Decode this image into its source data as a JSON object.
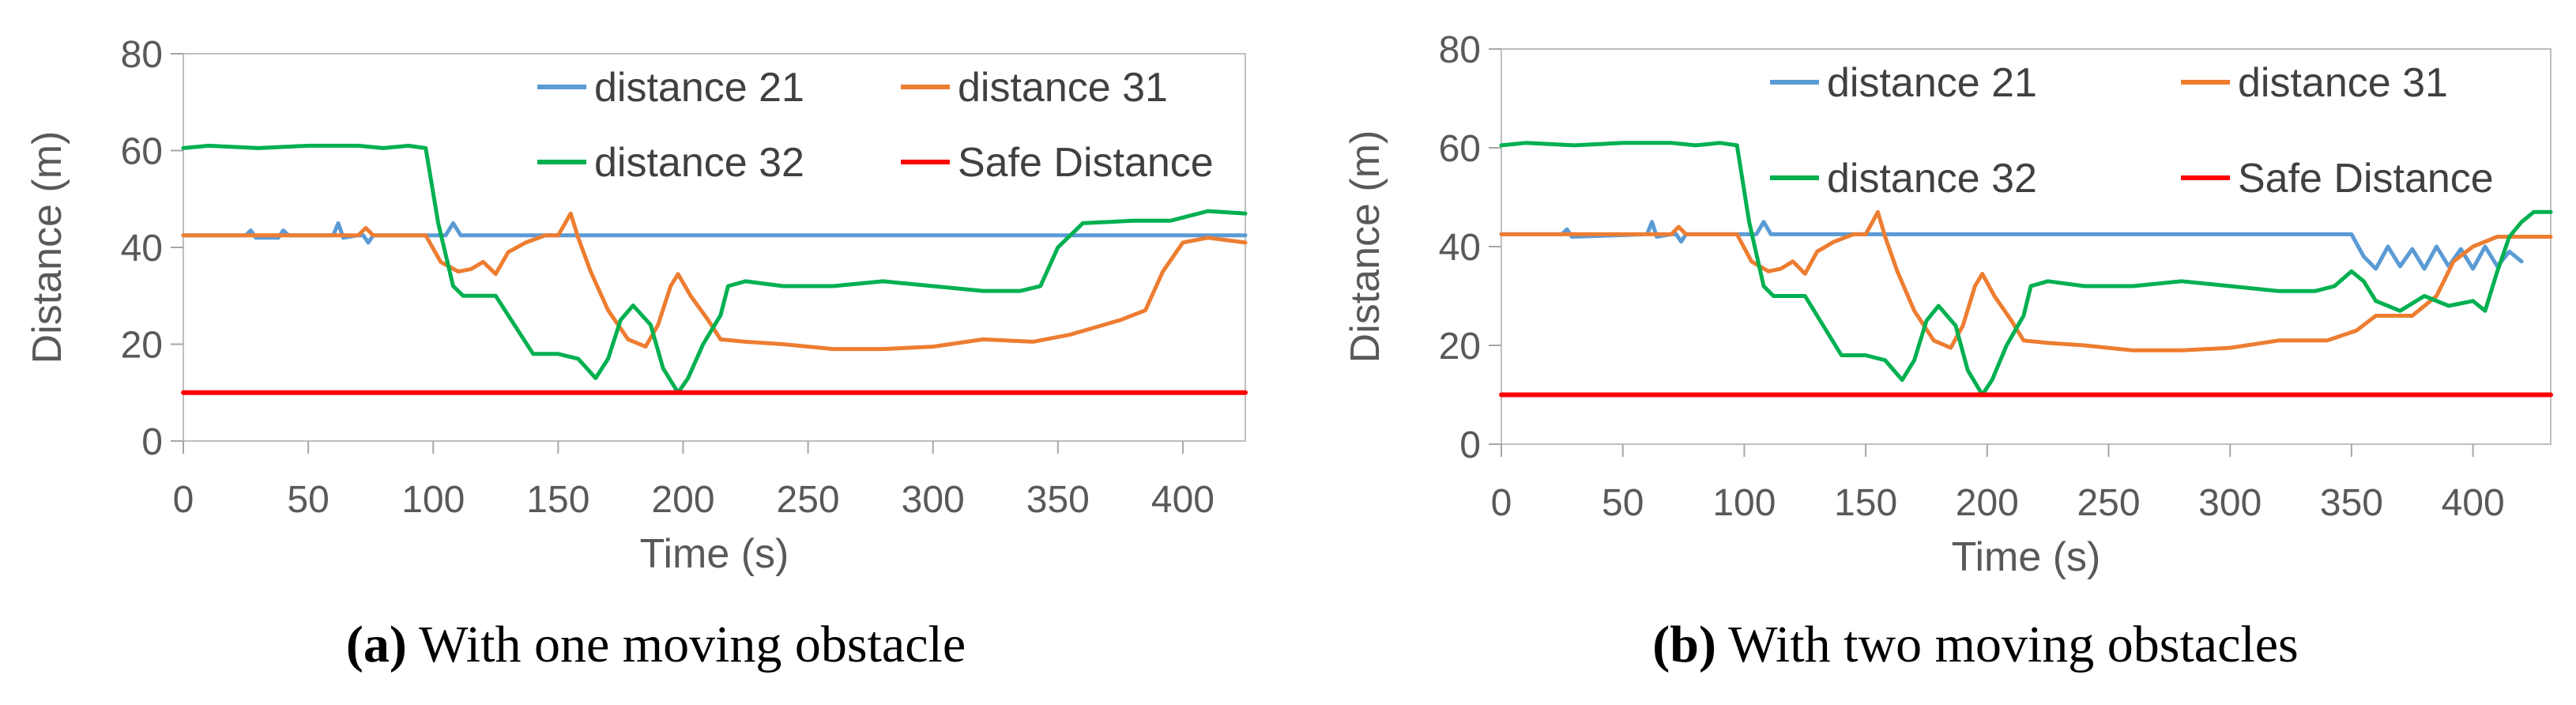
{
  "chart_data": [
    {
      "type": "line",
      "id": "a",
      "xlabel": "Time (s)",
      "ylabel": "Distance (m)",
      "xlim": [
        0,
        425
      ],
      "ylim": [
        0,
        80
      ],
      "xticks": [
        0,
        50,
        100,
        150,
        200,
        250,
        300,
        350,
        400
      ],
      "yticks": [
        0,
        20,
        40,
        60,
        80
      ],
      "legend_position": "top-right",
      "caption": {
        "tag": "(a)",
        "text": " With one moving obstacle"
      },
      "series": [
        {
          "name": "distance 21",
          "color": "#5B9BD5",
          "x": [
            0,
            25,
            27,
            29,
            38,
            40,
            42,
            60,
            62,
            64,
            70,
            72,
            74,
            76,
            105,
            108,
            111,
            425
          ],
          "y": [
            42.5,
            42.5,
            43.5,
            42,
            42,
            43.5,
            42.5,
            42.5,
            45,
            42,
            42.5,
            42.5,
            41,
            42.5,
            42.5,
            45,
            42.5,
            42.5
          ]
        },
        {
          "name": "distance 31",
          "color": "#ED7D31",
          "x": [
            0,
            70,
            73,
            76,
            97,
            103,
            110,
            115,
            120,
            125,
            130,
            137,
            145,
            150,
            155,
            158,
            163,
            170,
            178,
            185,
            190,
            195,
            198,
            203,
            210,
            215,
            225,
            240,
            260,
            280,
            300,
            320,
            340,
            355,
            375,
            385,
            392,
            400,
            410,
            425
          ],
          "y": [
            42.5,
            42.5,
            44,
            42.5,
            42.5,
            37,
            35,
            35.5,
            37,
            34.5,
            39,
            41,
            42.5,
            42.5,
            47,
            42,
            35,
            27,
            21,
            19.5,
            24,
            32,
            34.5,
            30,
            25,
            21,
            20.5,
            20,
            19,
            19,
            19.5,
            21,
            20.5,
            22,
            25,
            27,
            35,
            41,
            42,
            41
          ]
        },
        {
          "name": "distance 32",
          "color": "#00B050",
          "x": [
            0,
            10,
            30,
            50,
            70,
            80,
            90,
            97,
            102,
            108,
            112,
            125,
            140,
            150,
            158,
            165,
            170,
            175,
            180,
            187,
            192,
            198,
            202,
            208,
            215,
            218,
            225,
            240,
            260,
            280,
            300,
            320,
            335,
            343,
            350,
            360,
            380,
            395,
            410,
            425
          ],
          "y": [
            60.5,
            61,
            60.5,
            61,
            61,
            60.5,
            61,
            60.5,
            45,
            32,
            30,
            30,
            18,
            18,
            17,
            13,
            17,
            25,
            28,
            24,
            15,
            10,
            13,
            20,
            26,
            32,
            33,
            32,
            32,
            33,
            32,
            31,
            31,
            32,
            40,
            45,
            45.5,
            45.5,
            47.5,
            47
          ]
        },
        {
          "name": "Safe Distance",
          "color": "#FF0000",
          "x": [
            0,
            425
          ],
          "y": [
            10,
            10
          ]
        }
      ]
    },
    {
      "type": "line",
      "id": "b",
      "xlabel": "Time (s)",
      "ylabel": "Distance (m)",
      "xlim": [
        0,
        432
      ],
      "ylim": [
        0,
        80
      ],
      "xticks": [
        0,
        50,
        100,
        150,
        200,
        250,
        300,
        350,
        400
      ],
      "yticks": [
        0,
        20,
        40,
        60,
        80
      ],
      "legend_position": "top-right",
      "caption": {
        "tag": "(b)",
        "text": " With two moving obstacles"
      },
      "series": [
        {
          "name": "distance 21",
          "color": "#5B9BD5",
          "x": [
            0,
            25,
            27,
            29,
            60,
            62,
            64,
            70,
            72,
            74,
            76,
            105,
            108,
            111,
            350,
            355,
            360,
            365,
            370,
            375,
            380,
            385,
            390,
            395,
            400,
            405,
            410,
            415,
            420
          ],
          "y": [
            42.5,
            42.5,
            43.5,
            42,
            42.5,
            45,
            42,
            42.5,
            42.5,
            41,
            42.5,
            42.5,
            45,
            42.5,
            42.5,
            38,
            35.5,
            40,
            36,
            39.5,
            35.5,
            40,
            36,
            39.5,
            35.5,
            40,
            36,
            39,
            37
          ]
        },
        {
          "name": "distance 31",
          "color": "#ED7D31",
          "x": [
            0,
            70,
            73,
            76,
            97,
            103,
            110,
            115,
            120,
            125,
            130,
            137,
            145,
            150,
            155,
            158,
            163,
            170,
            178,
            185,
            190,
            195,
            198,
            203,
            210,
            215,
            225,
            240,
            260,
            280,
            300,
            320,
            340,
            352,
            360,
            375,
            385,
            392,
            400,
            410,
            420,
            432
          ],
          "y": [
            42.5,
            42.5,
            44,
            42.5,
            42.5,
            37,
            35,
            35.5,
            37,
            34.5,
            39,
            41,
            42.5,
            42.5,
            47,
            42,
            35,
            27,
            21,
            19.5,
            24,
            32,
            34.5,
            30,
            25,
            21,
            20.5,
            20,
            19,
            19,
            19.5,
            21,
            21,
            23,
            26,
            26,
            30,
            37,
            40,
            42,
            42,
            42
          ]
        },
        {
          "name": "distance 32",
          "color": "#00B050",
          "x": [
            0,
            10,
            30,
            50,
            70,
            80,
            90,
            97,
            102,
            108,
            112,
            125,
            140,
            150,
            158,
            165,
            170,
            175,
            180,
            187,
            192,
            198,
            202,
            208,
            215,
            218,
            225,
            240,
            260,
            280,
            300,
            320,
            335,
            343,
            350,
            355,
            360,
            370,
            380,
            390,
            400,
            405,
            410,
            415,
            420,
            425,
            432
          ],
          "y": [
            60.5,
            61,
            60.5,
            61,
            61,
            60.5,
            61,
            60.5,
            45,
            32,
            30,
            30,
            18,
            18,
            17,
            13,
            17,
            25,
            28,
            24,
            15,
            10,
            13,
            20,
            26,
            32,
            33,
            32,
            32,
            33,
            32,
            31,
            31,
            32,
            35,
            33,
            29,
            27,
            30,
            28,
            29,
            27,
            35,
            42,
            45,
            47,
            47
          ]
        },
        {
          "name": "Safe Distance",
          "color": "#FF0000",
          "x": [
            0,
            432
          ],
          "y": [
            10,
            10
          ]
        }
      ]
    }
  ]
}
